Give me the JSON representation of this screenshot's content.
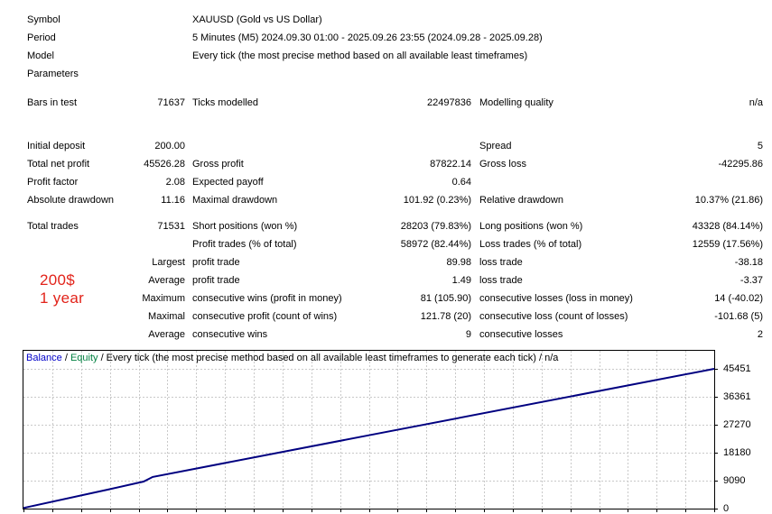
{
  "report": {
    "rows": [
      {
        "c1": "Symbol",
        "c3": "XAUUSD (Gold vs US Dollar)"
      },
      {
        "c1": "Period",
        "c3": "5 Minutes (M5) 2024.09.30 01:00 - 2025.09.26 23:55 (2024.09.28 - 2025.09.28)"
      },
      {
        "c1": "Model",
        "c3": "Every tick (the most precise method based on all available least timeframes)"
      },
      {
        "c1": "Parameters",
        "c3": ""
      },
      {
        "c1": "Bars in test",
        "c2": "71637",
        "c3": "Ticks modelled",
        "c4": "22497836",
        "c5": "Modelling quality",
        "c6": "n/a"
      },
      {
        "c1": "Initial deposit",
        "c2": "200.00",
        "c5": "Spread",
        "c6": "5"
      },
      {
        "c1": "Total net profit",
        "c2": "45526.28",
        "c3": "Gross profit",
        "c4": "87822.14",
        "c5": "Gross loss",
        "c6": "-42295.86"
      },
      {
        "c1": "Profit factor",
        "c2": "2.08",
        "c3": "Expected payoff",
        "c4": "0.64"
      },
      {
        "c1": "Absolute drawdown",
        "c2": "11.16",
        "c3": "Maximal drawdown",
        "c4": "101.92 (0.23%)",
        "c5": "Relative drawdown",
        "c6": "10.37% (21.86)"
      },
      {
        "c1": "Total trades",
        "c2": "71531",
        "c3": "Short positions (won %)",
        "c4": "28203 (79.83%)",
        "c5": "Long positions (won %)",
        "c6": "43328 (84.14%)"
      },
      {
        "c3": "Profit trades (% of total)",
        "c4": "58972 (82.44%)",
        "c5": "Loss trades (% of total)",
        "c6": "12559 (17.56%)"
      },
      {
        "c2": "Largest",
        "c3": "profit trade",
        "c4": "89.98",
        "c5": "loss trade",
        "c6": "-38.18"
      },
      {
        "c2": "Average",
        "c3": "profit trade",
        "c4": "1.49",
        "c5": "loss trade",
        "c6": "-3.37"
      },
      {
        "c2": "Maximum",
        "c3": "consecutive wins (profit in money)",
        "c4": "81 (105.90)",
        "c5": "consecutive losses (loss in money)",
        "c6": "14 (-40.02)"
      },
      {
        "c2": "Maximal",
        "c3": "consecutive profit (count of wins)",
        "c4": "121.78 (20)",
        "c5": "consecutive loss (count of losses)",
        "c6": "-101.68 (5)"
      },
      {
        "c2": "Average",
        "c3": "consecutive wins",
        "c4": "9",
        "c5": "consecutive losses",
        "c6": "2"
      }
    ]
  },
  "annotation": {
    "line1": "200$",
    "line2": "1 year",
    "color": "#e2231a"
  },
  "chart_data": {
    "type": "line",
    "title_parts": {
      "balance": "Balance",
      "sep1": " / ",
      "equity": "Equity",
      "rest": " / Every tick (the most precise method based on all available least timeframes to generate each tick) / n/a"
    },
    "colors": {
      "balance_label": "#0000c8",
      "equity_label": "#008040",
      "line": "#000080",
      "grid": "#c9c9c9",
      "border": "#000000"
    },
    "title": "Balance / Equity / Every tick (the most precise method based on all available least timeframes to generate each tick) / n/a",
    "xlabel": "",
    "ylabel": "",
    "x_axis_labels_visible": false,
    "grid": "dashed",
    "legend_position": "top-left",
    "y_ticks": [
      45451,
      36361,
      27270,
      18180,
      9090,
      0
    ],
    "ylim": [
      0,
      51300
    ],
    "series": [
      {
        "name": "Balance",
        "points_x_fraction_value": [
          [
            0,
            200
          ],
          [
            0.124,
            6270
          ],
          [
            0.174,
            8800
          ],
          [
            0.187,
            10300
          ],
          [
            0.5,
            23850
          ],
          [
            1,
            45451
          ]
        ]
      }
    ]
  }
}
